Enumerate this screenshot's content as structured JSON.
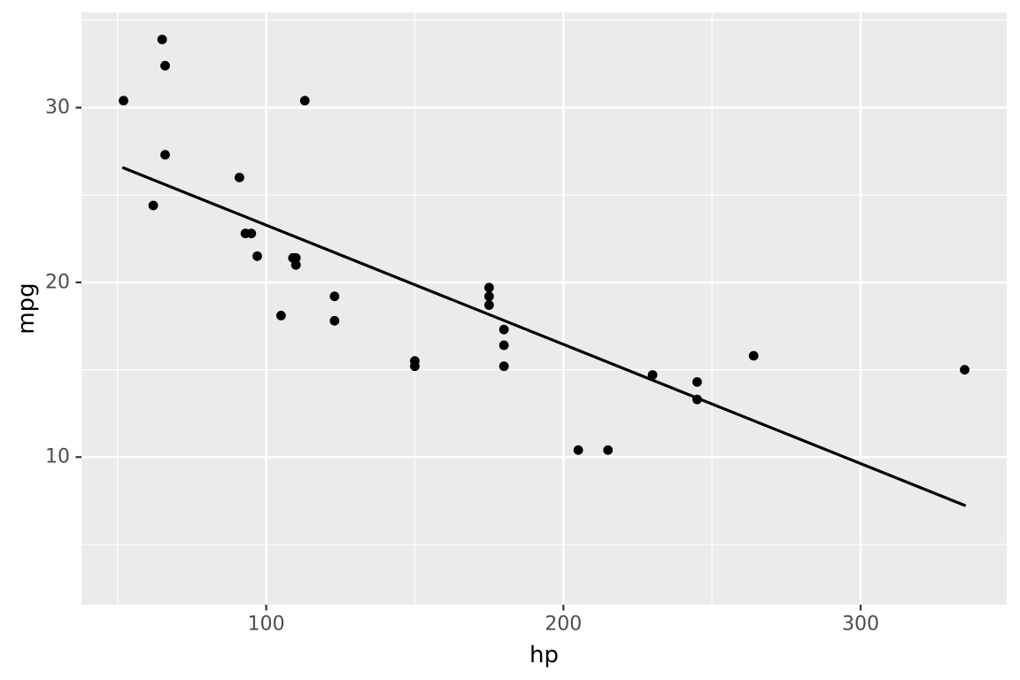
{
  "chart_data": {
    "type": "scatter",
    "title": "",
    "xlabel": "hp",
    "ylabel": "mpg",
    "xlim": [
      37.85,
      349.15
    ],
    "ylim": [
      1.55,
      35.45
    ],
    "x_ticks": [
      100,
      200,
      300
    ],
    "y_ticks": [
      10,
      20,
      30
    ],
    "x_minor_ticks": [
      50,
      150,
      250
    ],
    "y_minor_ticks": [
      5,
      15,
      25,
      35
    ],
    "grid": "major-and-minor",
    "legend_position": "none",
    "points": [
      [
        110,
        21.0
      ],
      [
        110,
        21.0
      ],
      [
        93,
        22.8
      ],
      [
        110,
        21.4
      ],
      [
        175,
        18.7
      ],
      [
        105,
        18.1
      ],
      [
        245,
        14.3
      ],
      [
        62,
        24.4
      ],
      [
        95,
        22.8
      ],
      [
        123,
        19.2
      ],
      [
        123,
        17.8
      ],
      [
        180,
        16.4
      ],
      [
        180,
        17.3
      ],
      [
        180,
        15.2
      ],
      [
        205,
        10.4
      ],
      [
        215,
        10.4
      ],
      [
        230,
        14.7
      ],
      [
        66,
        32.4
      ],
      [
        52,
        30.4
      ],
      [
        65,
        33.9
      ],
      [
        97,
        21.5
      ],
      [
        150,
        15.5
      ],
      [
        150,
        15.2
      ],
      [
        245,
        13.3
      ],
      [
        175,
        19.2
      ],
      [
        66,
        27.3
      ],
      [
        91,
        26.0
      ],
      [
        113,
        30.4
      ],
      [
        264,
        15.8
      ],
      [
        175,
        19.7
      ],
      [
        335,
        15.0
      ],
      [
        109,
        21.4
      ]
    ],
    "trend_line": {
      "type": "linear",
      "x1": 52,
      "y1": 26.55,
      "x2": 335,
      "y2": 7.24
    },
    "colors": {
      "figure_background": "#FFFFFF",
      "panel_background": "#EBEBEB",
      "gridline": "#FFFFFF",
      "point": "#000000",
      "trend_line": "#000000",
      "tick_mark": "#333333",
      "tick_label": "#4D4D4D",
      "axis_title": "#000000"
    }
  }
}
